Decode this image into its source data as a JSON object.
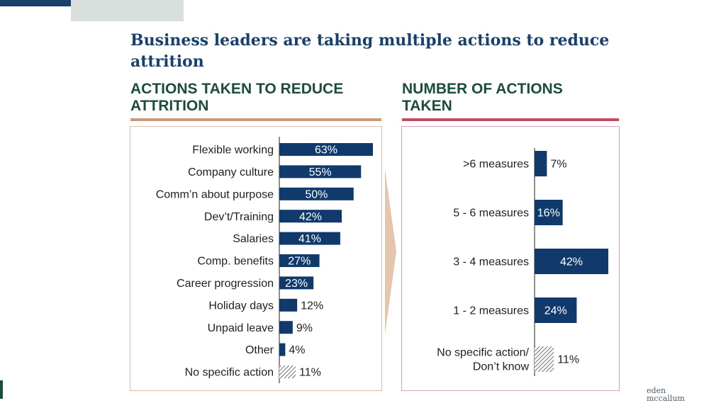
{
  "title": "Business leaders are taking multiple actions to reduce attrition",
  "left_heading": "ACTIONS TAKEN TO REDUCE ATTRITION",
  "right_heading": "NUMBER OF ACTIONS TAKEN",
  "logo": {
    "line1": "eden",
    "line2": "mccallum"
  },
  "colors": {
    "bar": "#0f3a6b",
    "title": "#17406d",
    "heading": "#1b4d3a",
    "rule_left": "#c8997a",
    "rule_right": "#c24b63"
  },
  "chart_data": [
    {
      "type": "bar",
      "orientation": "horizontal",
      "title": "ACTIONS TAKEN TO REDUCE ATTRITION",
      "categories": [
        "Flexible working",
        "Company culture",
        "Comm’n about purpose",
        "Dev’t/Training",
        "Salaries",
        "Comp. benefits",
        "Career progression",
        "Holiday days",
        "Unpaid leave",
        "Other",
        "No specific action"
      ],
      "values": [
        63,
        55,
        50,
        42,
        41,
        27,
        23,
        12,
        9,
        4,
        11
      ],
      "labels": [
        "63%",
        "55%",
        "50%",
        "42%",
        "41%",
        "27%",
        "23%",
        "12%",
        "9%",
        "4%",
        "11%"
      ],
      "hatched": [
        false,
        false,
        false,
        false,
        false,
        false,
        false,
        false,
        false,
        false,
        true
      ],
      "unit": "%",
      "xlim": [
        0,
        63
      ]
    },
    {
      "type": "bar",
      "orientation": "horizontal",
      "title": "NUMBER OF ACTIONS TAKEN",
      "categories": [
        ">6 measures",
        "5 - 6 measures",
        "3 - 4 measures",
        "1 - 2 measures",
        "No specific action/\nDon’t know"
      ],
      "values": [
        7,
        16,
        42,
        24,
        11
      ],
      "labels": [
        "7%",
        "16%",
        "42%",
        "24%",
        "11%"
      ],
      "hatched": [
        false,
        false,
        false,
        false,
        true
      ],
      "unit": "%",
      "xlim": [
        0,
        42
      ]
    }
  ]
}
